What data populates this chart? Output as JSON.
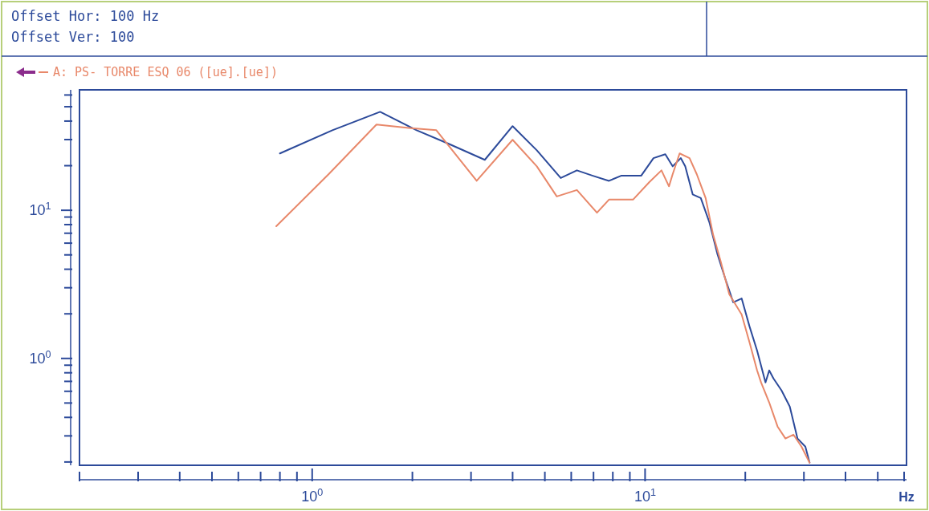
{
  "chart_data": {
    "type": "line",
    "xlabel": "Hz",
    "log": "xy",
    "grid": false,
    "legend": "top left",
    "marker": "none",
    "line_style": "solid",
    "annotations": [
      "Offset Hor: 100 Hz",
      "Offset Ver: 100"
    ],
    "xlim": [
      0.2,
      61
    ],
    "ylim": [
      0.19,
      65
    ],
    "xticks": [
      {
        "value": 0.2,
        "label": null
      },
      {
        "value": 0.3,
        "label": null
      },
      {
        "value": 0.4,
        "label": null
      },
      {
        "value": 0.5,
        "label": null
      },
      {
        "value": 0.6,
        "label": null
      },
      {
        "value": 0.7,
        "label": null
      },
      {
        "value": 0.8,
        "label": null
      },
      {
        "value": 0.9,
        "label": null
      },
      {
        "value": 1,
        "label": "10$^{0}$"
      },
      {
        "value": 2,
        "label": null
      },
      {
        "value": 3,
        "label": null
      },
      {
        "value": 4,
        "label": null
      },
      {
        "value": 5,
        "label": null
      },
      {
        "value": 6,
        "label": null
      },
      {
        "value": 7,
        "label": null
      },
      {
        "value": 8,
        "label": null
      },
      {
        "value": 9,
        "label": null
      },
      {
        "value": 10,
        "label": "10$^{1}$"
      },
      {
        "value": 20,
        "label": null
      },
      {
        "value": 30,
        "label": null
      },
      {
        "value": 40,
        "label": null
      },
      {
        "value": 50,
        "label": null
      },
      {
        "value": 60,
        "label": null
      }
    ],
    "yticks": [
      {
        "value": 0.2,
        "label": null
      },
      {
        "value": 0.3,
        "label": null
      },
      {
        "value": 0.4,
        "label": null
      },
      {
        "value": 0.5,
        "label": null
      },
      {
        "value": 0.6,
        "label": null
      },
      {
        "value": 0.7,
        "label": null
      },
      {
        "value": 0.8,
        "label": null
      },
      {
        "value": 0.9,
        "label": null
      },
      {
        "value": 1,
        "label": "10$^{0}$"
      },
      {
        "value": 2,
        "label": null
      },
      {
        "value": 3,
        "label": null
      },
      {
        "value": 4,
        "label": null
      },
      {
        "value": 5,
        "label": null
      },
      {
        "value": 6,
        "label": null
      },
      {
        "value": 7,
        "label": null
      },
      {
        "value": 8,
        "label": null
      },
      {
        "value": 9,
        "label": null
      },
      {
        "value": 10,
        "label": "10$^{1}$"
      },
      {
        "value": 20,
        "label": null
      },
      {
        "value": 30,
        "label": null
      },
      {
        "value": 40,
        "label": null
      },
      {
        "value": 50,
        "label": null
      },
      {
        "value": 60,
        "label": null
      }
    ],
    "series": [
      {
        "color": "#2c4a9a",
        "x": [
          31.2,
          30.3,
          28.7,
          27.2,
          25.7,
          24.3,
          23.6,
          23.0,
          21.7,
          20.6,
          19.5,
          18.4,
          17.4,
          16.5,
          15.6,
          14.7,
          13.9,
          13.2,
          12.8,
          12.1,
          11.5,
          10.6,
          9.73,
          8.47,
          7.79,
          6.97,
          6.24,
          5.58,
          4.73,
          4.0,
          3.3,
          2.57,
          2.06,
          1.6,
          1.15,
          0.8
        ],
        "values": [
          0.198,
          0.254,
          0.288,
          0.474,
          0.608,
          0.733,
          0.83,
          0.689,
          1.13,
          1.64,
          2.54,
          2.39,
          3.47,
          5.05,
          8.3,
          12.1,
          12.8,
          19.8,
          22.5,
          19.8,
          23.9,
          22.5,
          17.1,
          17.1,
          15.8,
          17.1,
          18.6,
          16.5,
          25.4,
          37.0,
          21.9,
          28.1,
          34.7,
          46.2,
          34.7,
          24.2
        ]
      },
      {
        "name": "A: PS- TORRE ESQ 06 ([ue].[ue])",
        "color": "#e8886a",
        "x": [
          31.2,
          29.5,
          27.9,
          26.4,
          25.0,
          23.6,
          22.3,
          21.7,
          20.6,
          19.5,
          17.9,
          16.9,
          16.0,
          15.2,
          14.3,
          13.6,
          12.7,
          12.1,
          11.8,
          11.2,
          10.3,
          9.2,
          7.79,
          7.17,
          6.24,
          5.43,
          4.73,
          4.0,
          3.12,
          2.36,
          1.95,
          1.56,
          1.12,
          0.78
        ],
        "values": [
          0.198,
          0.254,
          0.306,
          0.288,
          0.347,
          0.504,
          0.689,
          0.83,
          1.28,
          1.98,
          2.71,
          4.45,
          6.88,
          12.1,
          17.5,
          22.5,
          24.2,
          17.5,
          14.5,
          18.6,
          15.5,
          11.8,
          11.8,
          9.63,
          13.7,
          12.4,
          19.8,
          29.9,
          15.8,
          34.7,
          36.0,
          37.9,
          17.5,
          7.8
        ]
      }
    ]
  }
}
